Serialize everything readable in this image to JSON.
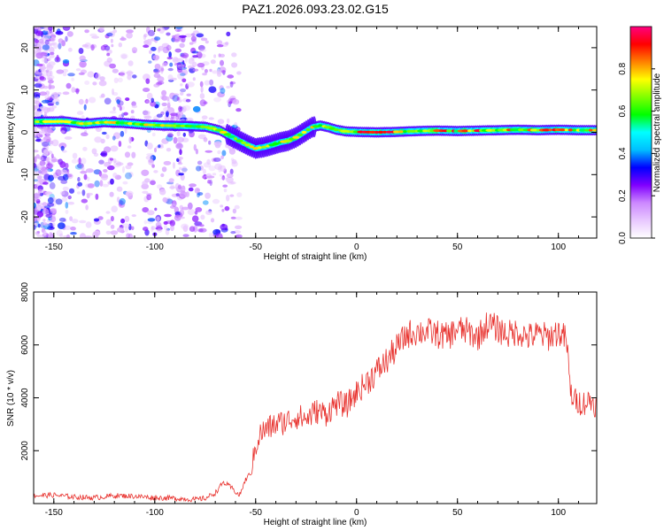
{
  "figure": {
    "title": "PAZ1.2026.093.23.02.G15"
  },
  "chart_data": [
    {
      "type": "heatmap",
      "xlabel": "Height of straight line (km)",
      "ylabel": "Frequency (Hz)",
      "xlim": [
        -160,
        119
      ],
      "ylim": [
        -25,
        25
      ],
      "xticks": [
        -150,
        -100,
        -50,
        0,
        50,
        100
      ],
      "yticks": [
        -20,
        -10,
        0,
        10,
        20
      ],
      "ridge": {
        "x": [
          -158,
          -145,
          -135,
          -125,
          -115,
          -105,
          -95,
          -85,
          -75,
          -68,
          -62,
          -58,
          -54,
          -50,
          -46,
          -42,
          -38,
          -34,
          -30,
          -26,
          -22,
          -18,
          -14,
          -10,
          -5,
          0,
          10,
          20,
          30,
          40,
          50,
          60,
          70,
          80,
          90,
          100,
          110,
          118
        ],
        "y": [
          2.5,
          2.6,
          2.0,
          2.4,
          2.2,
          1.8,
          1.6,
          1.5,
          1.3,
          0.5,
          -1.0,
          -2.0,
          -3.0,
          -3.8,
          -3.5,
          -3.0,
          -2.4,
          -2.0,
          -1.2,
          0.0,
          1.2,
          1.6,
          1.2,
          0.6,
          0.2,
          0.1,
          0.0,
          0.1,
          0.3,
          0.4,
          0.3,
          0.4,
          0.5,
          0.6,
          0.5,
          0.6,
          0.5,
          0.5
        ]
      },
      "colorbar": {
        "label": "Normalized spectral amplitude",
        "range": [
          0,
          1
        ],
        "ticks": [
          "0.0",
          "0.2",
          "0.4",
          "0.6",
          "0.8"
        ],
        "colors": [
          "#ffffff",
          "#e8c8ff",
          "#cc88ff",
          "#8000ff",
          "#0000ff",
          "#00bfff",
          "#00ffff",
          "#00ff00",
          "#80ff00",
          "#ffff00",
          "#ff8000",
          "#ff0000",
          "#ff0080"
        ]
      }
    },
    {
      "type": "line",
      "xlabel": "Height of straight line (km)",
      "ylabel": "SNR (10 * v/v)",
      "xlim": [
        -160,
        119
      ],
      "ylim": [
        0,
        8000
      ],
      "xticks": [
        -150,
        -100,
        -50,
        0,
        50,
        100
      ],
      "yticks": [
        2000,
        4000,
        6000,
        8000
      ],
      "series": [
        {
          "name": "SNR",
          "color": "#e8322e",
          "x": [
            -160,
            -150,
            -140,
            -130,
            -120,
            -110,
            -100,
            -90,
            -80,
            -75,
            -70,
            -66,
            -62,
            -58,
            -55,
            -52,
            -50,
            -48,
            -45,
            -40,
            -35,
            -30,
            -25,
            -20,
            -15,
            -10,
            -5,
            0,
            5,
            10,
            15,
            20,
            25,
            30,
            35,
            40,
            45,
            50,
            55,
            60,
            65,
            70,
            75,
            80,
            85,
            90,
            95,
            100,
            104,
            106,
            108,
            112,
            116,
            119
          ],
          "y": [
            300,
            320,
            250,
            220,
            300,
            280,
            220,
            200,
            150,
            200,
            400,
            800,
            600,
            300,
            900,
            1200,
            2200,
            2600,
            2800,
            3000,
            3100,
            3300,
            3200,
            3500,
            3400,
            3800,
            3700,
            4200,
            4600,
            5000,
            5400,
            5900,
            6400,
            6500,
            6500,
            6400,
            6300,
            6600,
            6500,
            6300,
            6800,
            6600,
            6400,
            6500,
            6300,
            6400,
            6300,
            6500,
            6200,
            4200,
            3900,
            3800,
            3900,
            3700
          ],
          "noise": 550
        }
      ]
    }
  ]
}
